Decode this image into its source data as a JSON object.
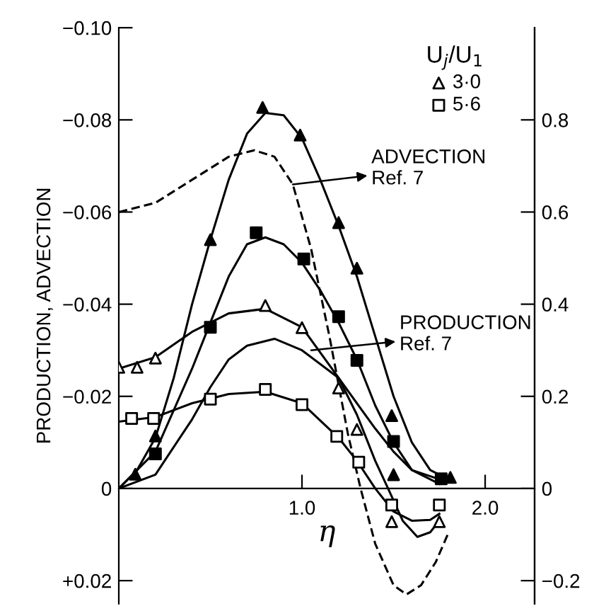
{
  "chart_data": {
    "type": "scatter",
    "xlabel": "η",
    "ylabel": "PRODUCTION, ADVECTION",
    "legend_title": "U$_{j}$/U$_{1}$",
    "legend": "top right",
    "grid": false,
    "xlim": [
      0,
      2.27
    ],
    "xticks": [
      {
        "value": 1.0,
        "label": "1.0"
      },
      {
        "value": 2.0,
        "label": "2.0"
      }
    ],
    "ylim": [
      0.025,
      -0.1
    ],
    "yticks": [
      {
        "value": -0.1,
        "label": "−0.10"
      },
      {
        "value": -0.08,
        "label": "−0.08"
      },
      {
        "value": -0.06,
        "label": "−0.06"
      },
      {
        "value": -0.04,
        "label": "−0.04"
      },
      {
        "value": -0.02,
        "label": "−0.02"
      },
      {
        "value": 0,
        "label": "0"
      },
      {
        "value": 0.02,
        "label": "+0.02"
      }
    ],
    "y2lim": [
      -0.25,
      1.0
    ],
    "y2ticks": [
      {
        "value": 0.8,
        "label": "0.8"
      },
      {
        "value": 0.6,
        "label": "0.6"
      },
      {
        "value": 0.4,
        "label": "0.4"
      },
      {
        "value": 0.2,
        "label": "0.2"
      },
      {
        "value": 0,
        "label": "0"
      },
      {
        "value": -0.2,
        "label": "−0.2"
      }
    ],
    "series": [
      {
        "name": "3·0",
        "marker": "triangle",
        "color": "#ffffff",
        "x": [
          0.0,
          0.1,
          0.2,
          0.8,
          1.0,
          1.2,
          1.3,
          1.49,
          1.75
        ],
        "values": [
          -0.0263,
          -0.0263,
          -0.0283,
          -0.0397,
          -0.0349,
          -0.0218,
          -0.0128,
          0.0072,
          0.0072
        ]
      },
      {
        "name": "5·6",
        "marker": "square",
        "color": "#ffffff",
        "x": [
          0.07,
          0.19,
          0.5,
          0.8,
          1.0,
          1.19,
          1.31,
          1.49,
          1.75
        ],
        "values": [
          -0.0152,
          -0.0152,
          -0.0194,
          -0.0215,
          -0.0182,
          -0.0113,
          -0.0057,
          0.0036,
          0.0036
        ]
      },
      {
        "marker": "triangle",
        "color": "#000000",
        "x": [
          0.09,
          0.2,
          0.5,
          0.785,
          0.99,
          1.2,
          1.3,
          1.49,
          1.5,
          1.81
        ],
        "values": [
          -0.0031,
          -0.0114,
          -0.054,
          -0.0827,
          -0.0767,
          -0.0577,
          -0.0478,
          -0.0158,
          -0.003,
          -0.0024
        ]
      },
      {
        "marker": "square",
        "color": "#000000",
        "x": [
          0.2,
          0.5,
          0.75,
          1.01,
          1.2,
          1.3,
          1.5,
          1.76
        ],
        "values": [
          -0.0075,
          -0.035,
          -0.0555,
          -0.0498,
          -0.0373,
          -0.0278,
          -0.0102,
          -0.0021
        ]
      },
      {
        "type": "line",
        "line_style": "solid",
        "color": "#000000",
        "x": [
          0,
          0.1,
          0.2,
          0.3,
          0.4,
          0.5,
          0.6,
          0.7,
          0.8,
          0.9,
          1.0,
          1.1,
          1.2,
          1.3,
          1.4,
          1.5,
          1.6,
          1.7,
          1.8
        ],
        "values": [
          0,
          -0.004,
          -0.011,
          -0.024,
          -0.04,
          -0.054,
          -0.067,
          -0.077,
          -0.0815,
          -0.081,
          -0.076,
          -0.067,
          -0.057,
          -0.046,
          -0.033,
          -0.02,
          -0.01,
          -0.004,
          -0.002
        ]
      },
      {
        "type": "line",
        "line_style": "solid",
        "color": "#000000",
        "x": [
          0,
          0.2,
          0.4,
          0.5,
          0.6,
          0.7,
          0.8,
          0.9,
          1.0,
          1.1,
          1.2,
          1.3,
          1.4,
          1.5,
          1.6,
          1.75
        ],
        "values": [
          0,
          -0.008,
          -0.026,
          -0.036,
          -0.046,
          -0.053,
          -0.0545,
          -0.053,
          -0.049,
          -0.043,
          -0.036,
          -0.028,
          -0.018,
          -0.01,
          -0.004,
          -0.002
        ]
      },
      {
        "type": "line",
        "line_style": "solid",
        "color": "#000000",
        "x": [
          0,
          0.2,
          0.4,
          0.6,
          0.8,
          1.0,
          1.2,
          1.3,
          1.4,
          1.47,
          1.55,
          1.63,
          1.7,
          1.75
        ],
        "values": [
          -0.026,
          -0.0285,
          -0.034,
          -0.038,
          -0.039,
          -0.035,
          -0.024,
          -0.016,
          -0.006,
          0,
          0.007,
          0.0105,
          0.0095,
          0.007
        ]
      },
      {
        "type": "line",
        "line_style": "solid",
        "color": "#000000",
        "x": [
          0,
          0.2,
          0.4,
          0.6,
          0.8,
          1.0,
          1.2,
          1.3,
          1.4,
          1.5,
          1.6,
          1.7,
          1.75
        ],
        "values": [
          -0.0145,
          -0.0155,
          -0.0185,
          -0.0205,
          -0.021,
          -0.0185,
          -0.011,
          -0.006,
          0,
          0.005,
          0.007,
          0.0068,
          0.0055
        ]
      },
      {
        "type": "line",
        "line_style": "solid",
        "color": "#000000",
        "x": [
          0,
          0.2,
          0.4,
          0.5,
          0.6,
          0.7,
          0.85,
          1.0,
          1.2,
          1.4,
          1.5,
          1.6,
          1.75
        ],
        "values": [
          0,
          -0.003,
          -0.015,
          -0.022,
          -0.028,
          -0.031,
          -0.0325,
          -0.03,
          -0.024,
          -0.013,
          -0.008,
          -0.004,
          -0.001
        ]
      },
      {
        "type": "line",
        "line_style": "dashed",
        "color": "#000000",
        "x": [
          0,
          0.2,
          0.4,
          0.6,
          0.74,
          0.85,
          0.95,
          1.05,
          1.15,
          1.25,
          1.32,
          1.4,
          1.5,
          1.57,
          1.65,
          1.73,
          1.8
        ],
        "values": [
          -0.06,
          -0.062,
          -0.067,
          -0.072,
          -0.0734,
          -0.072,
          -0.066,
          -0.052,
          -0.033,
          -0.012,
          0,
          0.012,
          0.021,
          0.023,
          0.021,
          0.016,
          0.0096
        ]
      }
    ],
    "annotations": [
      {
        "text": "ADVECTION\nRef. 7",
        "x": 0.95,
        "y": -0.066
      },
      {
        "text": "PRODUCTION\nRef. 7",
        "x": 1.05,
        "y": -0.03
      }
    ]
  }
}
